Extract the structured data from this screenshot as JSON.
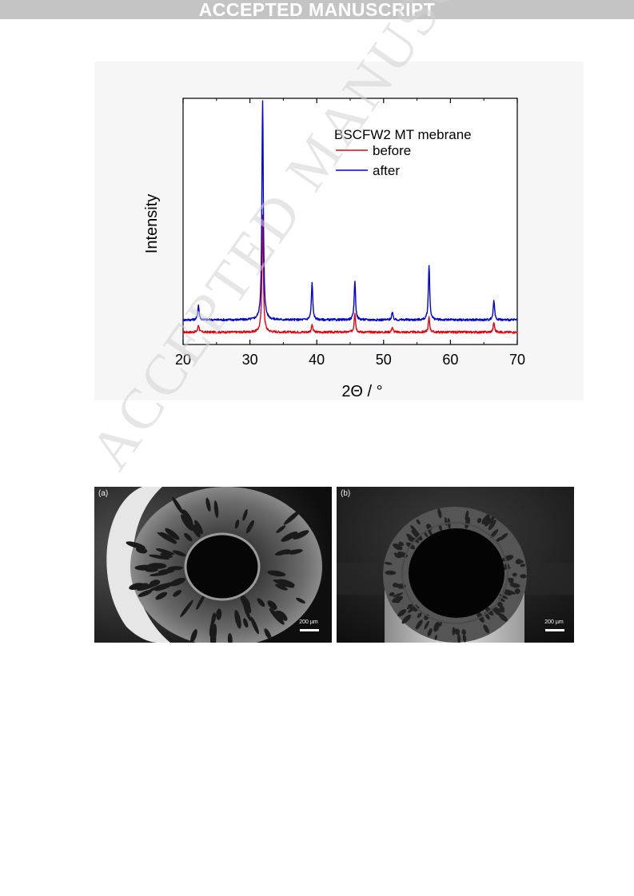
{
  "header": {
    "banner": "ACCEPTED MANUSCRIPT"
  },
  "watermark": "ACCEPTED MANUSCRIPT",
  "chart_data": {
    "type": "line",
    "title": "",
    "xlabel": "2Θ / °",
    "ylabel": "Intensity",
    "xlim": [
      20,
      70
    ],
    "xticks": [
      "20",
      "30",
      "40",
      "50",
      "60",
      "70"
    ],
    "ylim": [
      0,
      100
    ],
    "yticks": [],
    "grid": false,
    "legend": {
      "position": "top-right",
      "title": "BSCFW2 MT mebrane"
    },
    "series": [
      {
        "name": "before",
        "color": "#e8000b",
        "baseline": 5,
        "peaks": [
          [
            22.3,
            3
          ],
          [
            31.9,
            48
          ],
          [
            39.3,
            3
          ],
          [
            45.7,
            8
          ],
          [
            51.3,
            2
          ],
          [
            56.8,
            6
          ],
          [
            66.5,
            4
          ]
        ]
      },
      {
        "name": "after",
        "color": "#0000e0",
        "baseline": 10,
        "peaks": [
          [
            22.3,
            6
          ],
          [
            31.9,
            92
          ],
          [
            39.3,
            15
          ],
          [
            45.7,
            16
          ],
          [
            51.3,
            3
          ],
          [
            56.8,
            22
          ],
          [
            66.5,
            8
          ]
        ]
      }
    ]
  },
  "sem_images": [
    {
      "label": "(a)",
      "scale_bar": "200 µm"
    },
    {
      "label": "(b)",
      "scale_bar": "200 µm"
    }
  ]
}
